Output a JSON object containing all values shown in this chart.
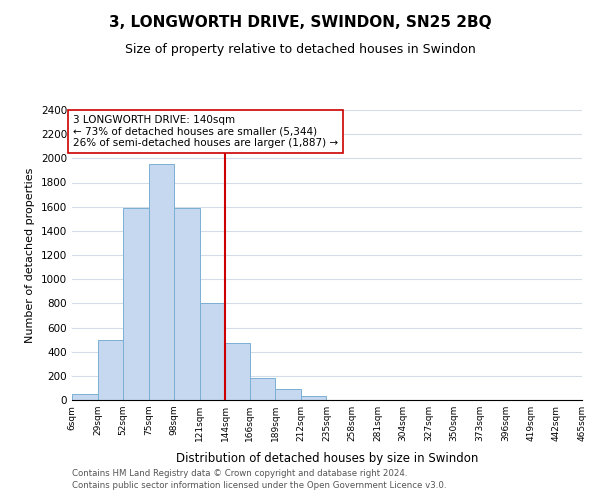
{
  "title": "3, LONGWORTH DRIVE, SWINDON, SN25 2BQ",
  "subtitle": "Size of property relative to detached houses in Swindon",
  "xlabel": "Distribution of detached houses by size in Swindon",
  "ylabel": "Number of detached properties",
  "bar_edges": [
    6,
    29,
    52,
    75,
    98,
    121,
    144,
    166,
    189,
    212,
    235,
    258,
    281,
    304,
    327,
    350,
    373,
    396,
    419,
    442,
    465
  ],
  "bar_heights": [
    50,
    500,
    1590,
    1950,
    1590,
    800,
    470,
    185,
    90,
    30,
    0,
    0,
    0,
    0,
    0,
    0,
    0,
    0,
    0,
    0
  ],
  "bar_color": "#c5d8f0",
  "bar_edgecolor": "#7aafd4",
  "vline_x": 144,
  "vline_color": "#cc0000",
  "annotation_text": "3 LONGWORTH DRIVE: 140sqm\n← 73% of detached houses are smaller (5,344)\n26% of semi-detached houses are larger (1,887) →",
  "annotation_box_color": "#ffffff",
  "annotation_box_edgecolor": "#cc0000",
  "ylim": [
    0,
    2400
  ],
  "xlim": [
    6,
    465
  ],
  "tick_labels": [
    "6sqm",
    "29sqm",
    "52sqm",
    "75sqm",
    "98sqm",
    "121sqm",
    "144sqm",
    "166sqm",
    "189sqm",
    "212sqm",
    "235sqm",
    "258sqm",
    "281sqm",
    "304sqm",
    "327sqm",
    "350sqm",
    "373sqm",
    "396sqm",
    "419sqm",
    "442sqm",
    "465sqm"
  ],
  "tick_positions": [
    6,
    29,
    52,
    75,
    98,
    121,
    144,
    166,
    189,
    212,
    235,
    258,
    281,
    304,
    327,
    350,
    373,
    396,
    419,
    442,
    465
  ],
  "ytick_positions": [
    0,
    200,
    400,
    600,
    800,
    1000,
    1200,
    1400,
    1600,
    1800,
    2000,
    2200,
    2400
  ],
  "footer1": "Contains HM Land Registry data © Crown copyright and database right 2024.",
  "footer2": "Contains public sector information licensed under the Open Government Licence v3.0.",
  "background_color": "#ffffff",
  "grid_color": "#d4dce8"
}
